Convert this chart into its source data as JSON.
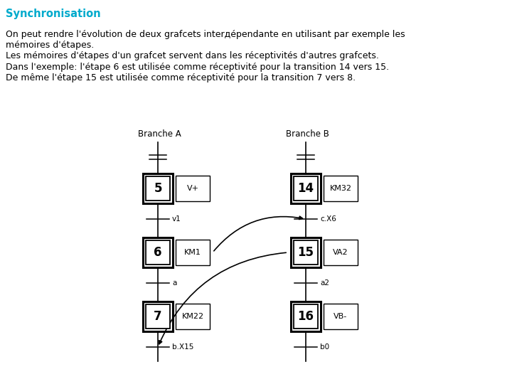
{
  "title": "Synchronisation",
  "title_color": "#00AACC",
  "body_text_lines": [
    "On peut rendre l’évolution de deux grafcets interдépendante en utilisant par exemple les",
    "mémoires d’étapes.",
    "Les mémoires d’étapes d’un grafcet servent dans les réceptivités d’autres grafcets.",
    "Dans l’exemple: l’étape 6 est utilisée comme réceptivité pour la transition 14 vers 15.",
    "De même l’étape 15 est utilisée comme réceptivité pour la transition 7 vers 8."
  ],
  "bg_color": "#ffffff",
  "text_color": "#000000",
  "branche_a_label": "Branche A",
  "branche_b_label": "Branche B",
  "steps_a": [
    {
      "num": "5",
      "action": "V+",
      "transition": "v1"
    },
    {
      "num": "6",
      "action": "KM1",
      "transition": "a"
    },
    {
      "num": "7",
      "action": "KM22",
      "transition": "b.X15"
    }
  ],
  "steps_b": [
    {
      "num": "14",
      "action": "KM32",
      "transition": "c.X6"
    },
    {
      "num": "15",
      "action": "VA2",
      "transition": "a2"
    },
    {
      "num": "16",
      "action": "VB-",
      "transition": "b0"
    }
  ]
}
